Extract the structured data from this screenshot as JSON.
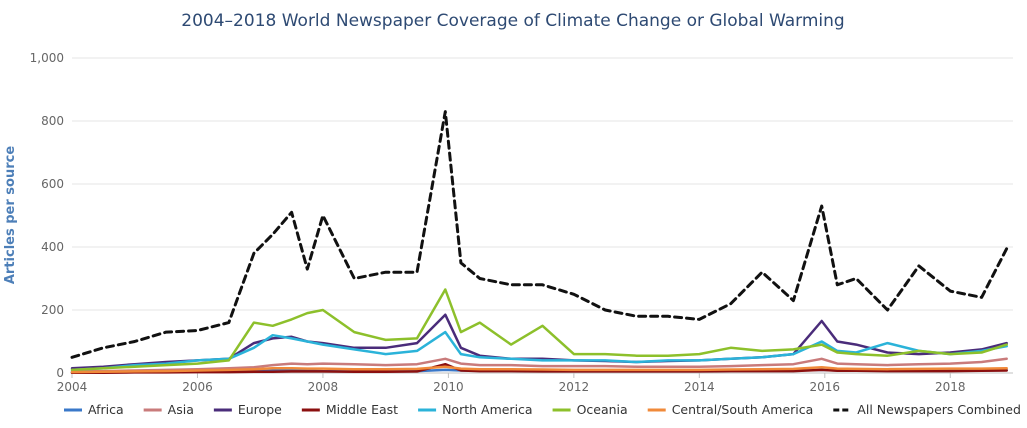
{
  "chart_data": {
    "type": "line",
    "title": "2004–2018 World Newspaper Coverage of Climate Change or Global Warming",
    "xlabel": "",
    "ylabel": "Articles per source",
    "xlim": [
      2004.0,
      2019.0
    ],
    "ylim": [
      0,
      1000
    ],
    "x_ticks": [
      2004,
      2006,
      2008,
      2010,
      2012,
      2014,
      2016,
      2018
    ],
    "y_ticks": [
      0,
      200,
      400,
      600,
      800,
      1000
    ],
    "x_tick_labels": [
      "2004",
      "2006",
      "2008",
      "2010",
      "2012",
      "2014",
      "2016",
      "2018"
    ],
    "y_tick_labels": [
      "0",
      "200",
      "400",
      "600",
      "800",
      "1,000"
    ],
    "grid": "horizontal",
    "legend_position": "bottom",
    "x": [
      2004.0,
      2004.5,
      2005.0,
      2005.5,
      2006.0,
      2006.5,
      2006.9,
      2007.2,
      2007.5,
      2007.75,
      2008.0,
      2008.5,
      2009.0,
      2009.5,
      2009.95,
      2010.2,
      2010.5,
      2011.0,
      2011.5,
      2012.0,
      2012.5,
      2013.0,
      2013.5,
      2014.0,
      2014.5,
      2015.0,
      2015.5,
      2015.95,
      2016.2,
      2016.5,
      2017.0,
      2017.5,
      2018.0,
      2018.5,
      2018.9
    ],
    "series": [
      {
        "name": "Africa",
        "color": "#3a78c9",
        "dash": false,
        "values": [
          2,
          3,
          3,
          4,
          4,
          5,
          6,
          7,
          7,
          8,
          6,
          5,
          5,
          6,
          10,
          8,
          7,
          7,
          6,
          6,
          6,
          6,
          6,
          6,
          7,
          7,
          8,
          10,
          8,
          8,
          7,
          7,
          8,
          8,
          9
        ]
      },
      {
        "name": "Asia",
        "color": "#c97b7b",
        "dash": false,
        "values": [
          5,
          6,
          8,
          10,
          12,
          15,
          18,
          25,
          30,
          28,
          30,
          28,
          25,
          28,
          45,
          30,
          25,
          25,
          22,
          22,
          22,
          20,
          20,
          20,
          22,
          25,
          28,
          45,
          30,
          28,
          25,
          28,
          30,
          35,
          45
        ]
      },
      {
        "name": "Europe",
        "color": "#4a2c7a",
        "dash": false,
        "values": [
          15,
          20,
          28,
          35,
          40,
          45,
          95,
          110,
          115,
          100,
          95,
          80,
          80,
          95,
          185,
          80,
          55,
          45,
          45,
          40,
          38,
          35,
          38,
          40,
          45,
          50,
          60,
          165,
          100,
          90,
          65,
          60,
          65,
          75,
          95
        ]
      },
      {
        "name": "Middle East",
        "color": "#8b0f0f",
        "dash": false,
        "values": [
          1,
          1,
          2,
          2,
          3,
          3,
          4,
          4,
          5,
          5,
          5,
          4,
          4,
          5,
          28,
          8,
          6,
          6,
          5,
          5,
          5,
          5,
          5,
          5,
          6,
          6,
          6,
          10,
          7,
          7,
          6,
          6,
          6,
          7,
          8
        ]
      },
      {
        "name": "North America",
        "color": "#2bb3d9",
        "dash": false,
        "values": [
          10,
          15,
          25,
          30,
          40,
          45,
          80,
          120,
          110,
          100,
          90,
          75,
          60,
          70,
          130,
          60,
          50,
          45,
          40,
          40,
          40,
          35,
          40,
          40,
          45,
          50,
          60,
          100,
          70,
          65,
          95,
          70,
          60,
          70,
          85
        ]
      },
      {
        "name": "Oceania",
        "color": "#8dc02b",
        "dash": false,
        "values": [
          10,
          15,
          20,
          25,
          30,
          40,
          160,
          150,
          170,
          190,
          200,
          130,
          105,
          110,
          265,
          130,
          160,
          90,
          150,
          60,
          60,
          55,
          55,
          60,
          80,
          70,
          75,
          90,
          65,
          60,
          55,
          70,
          60,
          65,
          90
        ]
      },
      {
        "name": "Central/South America",
        "color": "#f08a3a",
        "dash": false,
        "values": [
          3,
          4,
          5,
          6,
          8,
          10,
          12,
          15,
          15,
          14,
          14,
          12,
          12,
          13,
          20,
          14,
          12,
          12,
          11,
          10,
          10,
          10,
          10,
          10,
          11,
          12,
          13,
          18,
          14,
          13,
          12,
          13,
          14,
          14,
          15
        ]
      },
      {
        "name": "All Newspapers Combined",
        "color": "#111111",
        "dash": true,
        "values": [
          50,
          80,
          100,
          130,
          135,
          160,
          380,
          440,
          510,
          330,
          500,
          300,
          320,
          320,
          830,
          350,
          300,
          280,
          280,
          250,
          200,
          180,
          180,
          170,
          220,
          320,
          230,
          530,
          280,
          300,
          200,
          340,
          260,
          240,
          395
        ]
      }
    ]
  }
}
